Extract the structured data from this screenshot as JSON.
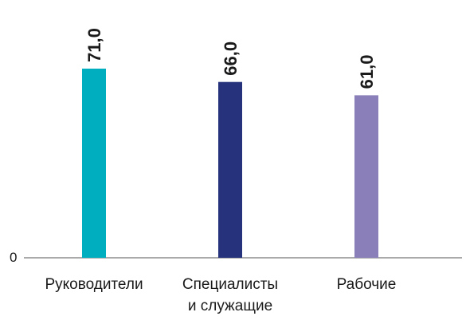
{
  "chart_data": {
    "type": "bar",
    "categories": [
      "Руководители",
      "Специалисты и служащие",
      "Рабочие"
    ],
    "category_lines": [
      [
        "Руководители"
      ],
      [
        "Специалисты",
        "и служащие"
      ],
      [
        "Рабочие"
      ]
    ],
    "values": [
      71.0,
      66.0,
      61.0
    ],
    "value_labels": [
      "71,0",
      "66,0",
      "61,0"
    ],
    "colors": [
      "#00afbf",
      "#27327c",
      "#8a7fb8"
    ],
    "y_tick_labels": [
      "0"
    ],
    "ylim": [
      0,
      100
    ],
    "title": "",
    "xlabel": "",
    "ylabel": "",
    "grid": false,
    "legend": "none"
  }
}
